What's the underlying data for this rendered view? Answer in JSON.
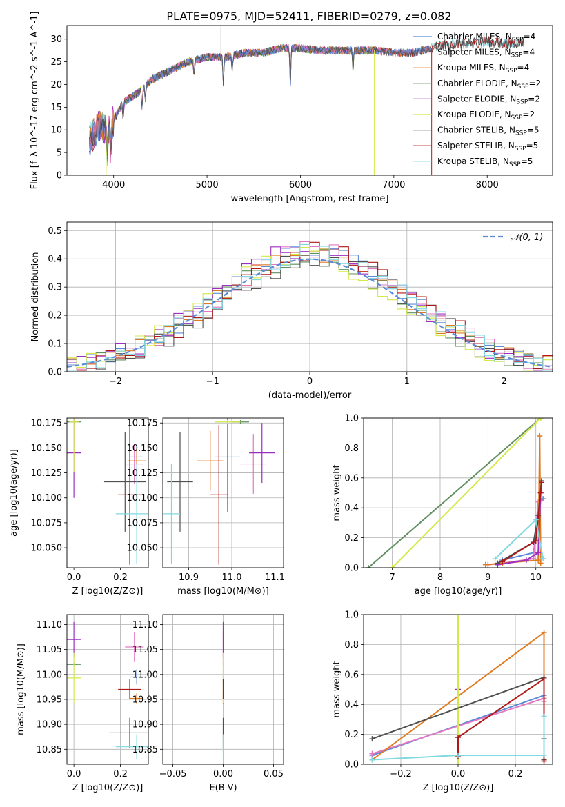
{
  "figure_title": "PLATE=0975, MJD=52411, FIBERID=0279, z=0.082",
  "colors": {
    "Chabrier MILES": "#5b8bd6",
    "Salpeter MILES": "#e377c2",
    "Kroupa MILES": "#e07a20",
    "Chabrier ELODIE": "#5f8f5f",
    "Salpeter ELODIE": "#9b30c0",
    "Kroupa ELODIE": "#d4e84a",
    "Chabrier STELIB": "#505050",
    "Salpeter STELIB": "#b01818",
    "Kroupa STELIB": "#7fd8e0"
  },
  "chart_data": [
    {
      "id": "spectrum",
      "type": "line",
      "title": "PLATE=0975, MJD=52411, FIBERID=0279, z=0.082",
      "xlabel": "wavelength [Angstrom, rest frame]",
      "ylabel": "Flux [f_λ 10^-17 erg cm^-2 s^-1 A^-1]",
      "xlim": [
        3500,
        8700
      ],
      "ylim": [
        0,
        33
      ],
      "xticks": [
        4000,
        5000,
        6000,
        7000,
        8000
      ],
      "yticks": [
        0,
        5,
        10,
        15,
        20,
        25,
        30
      ],
      "grid": false,
      "legend_position": "top-right",
      "legend": [
        {
          "name": "Chabrier MILES",
          "label": "Chabrier MILES, N",
          "sub": "SSP",
          "suffix": "=4"
        },
        {
          "name": "Salpeter MILES",
          "label": "Salpeter MILES, N",
          "sub": "SSP",
          "suffix": "=4"
        },
        {
          "name": "Kroupa MILES",
          "label": "Kroupa MILES, N",
          "sub": "SSP",
          "suffix": "=4"
        },
        {
          "name": "Chabrier ELODIE",
          "label": "Chabrier ELODIE, N",
          "sub": "SSP",
          "suffix": "=2"
        },
        {
          "name": "Salpeter ELODIE",
          "label": "Salpeter ELODIE, N",
          "sub": "SSP",
          "suffix": "=2"
        },
        {
          "name": "Kroupa ELODIE",
          "label": "Kroupa ELODIE, N",
          "sub": "SSP",
          "suffix": "=2"
        },
        {
          "name": "Chabrier STELIB",
          "label": "Chabrier STELIB, N",
          "sub": "SSP",
          "suffix": "=5"
        },
        {
          "name": "Salpeter STELIB",
          "label": "Salpeter STELIB, N",
          "sub": "SSP",
          "suffix": "=5"
        },
        {
          "name": "Kroupa STELIB",
          "label": "Kroupa STELIB, N",
          "sub": "SSP",
          "suffix": "=5"
        }
      ],
      "continuum_points": [
        [
          3750,
          8
        ],
        [
          3850,
          11
        ],
        [
          3950,
          10
        ],
        [
          4000,
          12
        ],
        [
          4100,
          16
        ],
        [
          4250,
          18
        ],
        [
          4400,
          21
        ],
        [
          4600,
          23
        ],
        [
          4800,
          25
        ],
        [
          5000,
          26
        ],
        [
          5200,
          26
        ],
        [
          5400,
          27
        ],
        [
          5600,
          27
        ],
        [
          5800,
          28
        ],
        [
          6000,
          28
        ],
        [
          6200,
          27.5
        ],
        [
          6500,
          27.5
        ],
        [
          6800,
          27.5
        ],
        [
          7000,
          27
        ],
        [
          7200,
          27
        ],
        [
          7400,
          28
        ],
        [
          7600,
          29
        ],
        [
          7800,
          29
        ],
        [
          8000,
          29.5
        ],
        [
          8200,
          29
        ],
        [
          8400,
          29.5
        ]
      ],
      "absorption_lines": [
        [
          3934,
          -6
        ],
        [
          3968,
          -5
        ],
        [
          4102,
          -3
        ],
        [
          4304,
          -4
        ],
        [
          4340,
          -3
        ],
        [
          4861,
          -3
        ],
        [
          5175,
          -6
        ],
        [
          5270,
          -3
        ],
        [
          5892,
          -8
        ],
        [
          6563,
          -4
        ],
        [
          7600,
          -2
        ]
      ],
      "spikes": [
        [
          5150,
          "Chabrier STELIB",
          33
        ],
        [
          3920,
          "Kroupa ELODIE",
          0
        ],
        [
          6790,
          "Kroupa ELODIE",
          0
        ],
        [
          7405,
          "Salpeter STELIB",
          0
        ]
      ],
      "spectrum_end": {
        "MILES": 7400,
        "ELODIE": 6790,
        "STELIB": 8400
      }
    },
    {
      "id": "residuals",
      "type": "histogram",
      "xlabel": "(data-model)/error",
      "ylabel": "Normed distribution",
      "xlim": [
        -2.5,
        2.5
      ],
      "ylim": [
        0,
        0.53
      ],
      "xticks": [
        -2,
        -1,
        0,
        1,
        2
      ],
      "yticks": [
        0.0,
        0.1,
        0.2,
        0.3,
        0.4,
        0.5
      ],
      "grid": true,
      "bin_width": 0.1,
      "legend_position": "top-right",
      "reference_curve": {
        "name": "N(0,1)",
        "label": "𝒩(0, 1)",
        "style": "dashed",
        "color": "#5b8bd6"
      },
      "histogram_series": [
        {
          "name": "Chabrier MILES",
          "amplitude": 0.42,
          "offset": 0.03
        },
        {
          "name": "Salpeter MILES",
          "amplitude": 0.43,
          "offset": 0.06
        },
        {
          "name": "Kroupa MILES",
          "amplitude": 0.41,
          "offset": 0.02
        },
        {
          "name": "Chabrier ELODIE",
          "amplitude": 0.4,
          "offset": -0.02
        },
        {
          "name": "Salpeter ELODIE",
          "amplitude": 0.44,
          "offset": 0.01
        },
        {
          "name": "Kroupa ELODIE",
          "amplitude": 0.41,
          "offset": -0.05
        },
        {
          "name": "Chabrier STELIB",
          "amplitude": 0.4,
          "offset": 0.08
        },
        {
          "name": "Salpeter STELIB",
          "amplitude": 0.43,
          "offset": 0.1
        },
        {
          "name": "Kroupa STELIB",
          "amplitude": 0.42,
          "offset": 0.04
        }
      ]
    },
    {
      "id": "age_vs_Z",
      "type": "errorbar",
      "xlabel": "Z [log10(Z/Z⊙)]",
      "ylabel": "age [log10(age/yr)]",
      "xlim": [
        -0.03,
        0.32
      ],
      "ylim": [
        10.03,
        10.18
      ],
      "xticks": [
        0.0,
        0.2
      ],
      "yticks": [
        10.05,
        10.075,
        10.1,
        10.125,
        10.15,
        10.175
      ],
      "grid": false,
      "points": [
        {
          "name": "Chabrier MILES",
          "x": 0.27,
          "y": 10.141,
          "xerr": 0.03,
          "yerr": 0.01
        },
        {
          "name": "Salpeter MILES",
          "x": 0.26,
          "y": 10.134,
          "xerr": 0.04,
          "yerr": 0.02
        },
        {
          "name": "Kroupa MILES",
          "x": 0.27,
          "y": 10.137,
          "xerr": 0.04,
          "yerr": 0.012
        },
        {
          "name": "Chabrier ELODIE",
          "x": 0.0,
          "y": 10.176,
          "xerr": 0.03,
          "yerr": 0.002
        },
        {
          "name": "Salpeter ELODIE",
          "x": 0.0,
          "y": 10.145,
          "xerr": 0.03,
          "yerr": 0.045
        },
        {
          "name": "Kroupa ELODIE",
          "x": 0.0,
          "y": 10.176,
          "xerr": 0.02,
          "yerr": 0.05
        },
        {
          "name": "Chabrier STELIB",
          "x": 0.22,
          "y": 10.116,
          "xerr": 0.09,
          "yerr": 0.05
        },
        {
          "name": "Salpeter STELIB",
          "x": 0.24,
          "y": 10.103,
          "xerr": 0.05,
          "yerr": 0.07
        },
        {
          "name": "Kroupa STELIB",
          "x": 0.27,
          "y": 10.084,
          "xerr": 0.09,
          "yerr": 0.05
        }
      ]
    },
    {
      "id": "age_vs_mass",
      "type": "errorbar",
      "xlabel": "mass [log10(M/M⊙)]",
      "ylabel": "",
      "xlim": [
        10.84,
        11.12
      ],
      "ylim": [
        10.03,
        10.18
      ],
      "xticks": [
        10.9,
        11.0,
        11.1
      ],
      "yticks": [
        10.05,
        10.075,
        10.1,
        10.125,
        10.15,
        10.175
      ],
      "grid": true,
      "points": [
        {
          "name": "Chabrier MILES",
          "x": 10.99,
          "y": 10.141,
          "xerr": 0.03,
          "yerr": 0.055
        },
        {
          "name": "Salpeter MILES",
          "x": 11.05,
          "y": 10.134,
          "xerr": 0.03,
          "yerr": 0.03
        },
        {
          "name": "Kroupa MILES",
          "x": 10.95,
          "y": 10.137,
          "xerr": 0.03,
          "yerr": 0.03
        },
        {
          "name": "Chabrier ELODIE",
          "x": 11.02,
          "y": 10.176,
          "xerr": 0.02,
          "yerr": 0.002
        },
        {
          "name": "Salpeter ELODIE",
          "x": 11.07,
          "y": 10.145,
          "xerr": 0.03,
          "yerr": 0.03
        },
        {
          "name": "Kroupa ELODIE",
          "x": 10.99,
          "y": 10.176,
          "xerr": 0.03,
          "yerr": 0.002
        },
        {
          "name": "Chabrier STELIB",
          "x": 10.88,
          "y": 10.116,
          "xerr": 0.03,
          "yerr": 0.05
        },
        {
          "name": "Salpeter STELIB",
          "x": 10.97,
          "y": 10.103,
          "xerr": 0.02,
          "yerr": 0.07
        },
        {
          "name": "Kroupa STELIB",
          "x": 10.86,
          "y": 10.084,
          "xerr": 0.02,
          "yerr": 0.05
        }
      ]
    },
    {
      "id": "massweight_vs_age",
      "type": "line",
      "xlabel": "age [log10(age/yr)]",
      "ylabel": "mass weight",
      "xlim": [
        6.4,
        10.35
      ],
      "ylim": [
        0,
        1
      ],
      "xticks": [
        7,
        8,
        9,
        10
      ],
      "yticks": [
        0.0,
        0.2,
        0.4,
        0.6,
        0.8,
        1.0
      ],
      "grid": true,
      "series": [
        {
          "name": "Chabrier MILES",
          "x": [
            9.2,
            9.3,
            9.95,
            10.1,
            10.15
          ],
          "y": [
            0.02,
            0.05,
            0.1,
            0.45,
            0.46
          ]
        },
        {
          "name": "Salpeter MILES",
          "x": [
            9.0,
            9.3,
            9.95,
            10.05,
            10.1
          ],
          "y": [
            0.02,
            0.03,
            0.06,
            0.44,
            0.45
          ]
        },
        {
          "name": "Kroupa MILES",
          "x": [
            8.95,
            9.3,
            10.05,
            10.08,
            10.1
          ],
          "y": [
            0.02,
            0.03,
            0.05,
            0.88,
            0.03
          ]
        },
        {
          "name": "Chabrier ELODIE",
          "x": [
            6.5,
            10.1
          ],
          "y": [
            0.0,
            1.0
          ]
        },
        {
          "name": "Salpeter ELODIE",
          "x": [
            9.2,
            9.8,
            10.05,
            10.1
          ],
          "y": [
            0.02,
            0.05,
            0.1,
            0.5
          ]
        },
        {
          "name": "Kroupa ELODIE",
          "x": [
            7.0,
            10.1
          ],
          "y": [
            0.0,
            1.0
          ]
        },
        {
          "name": "Chabrier STELIB",
          "x": [
            9.2,
            9.95,
            10.05,
            10.12
          ],
          "y": [
            0.03,
            0.17,
            0.35,
            0.58
          ]
        },
        {
          "name": "Salpeter STELIB",
          "x": [
            9.3,
            10.0,
            10.1,
            10.12
          ],
          "y": [
            0.04,
            0.18,
            0.5,
            0.57
          ]
        },
        {
          "name": "Kroupa STELIB",
          "x": [
            9.15,
            10.0,
            10.15
          ],
          "y": [
            0.06,
            0.32,
            0.06
          ]
        }
      ]
    },
    {
      "id": "mass_vs_Z",
      "type": "errorbar",
      "xlabel": "Z [log10(Z/Z⊙)]",
      "ylabel": "mass [log10(M/M⊙)]",
      "xlim": [
        -0.03,
        0.32
      ],
      "ylim": [
        10.82,
        11.12
      ],
      "xticks": [
        0.0,
        0.2
      ],
      "yticks": [
        10.85,
        10.9,
        10.95,
        11.0,
        11.05,
        11.1
      ],
      "grid": true,
      "points": [
        {
          "name": "Chabrier MILES",
          "x": 0.27,
          "y": 10.995,
          "xerr": 0.03,
          "yerr": 0.015
        },
        {
          "name": "Salpeter MILES",
          "x": 0.26,
          "y": 11.055,
          "xerr": 0.04,
          "yerr": 0.03
        },
        {
          "name": "Kroupa MILES",
          "x": 0.27,
          "y": 10.952,
          "xerr": 0.03,
          "yerr": 0.01
        },
        {
          "name": "Chabrier ELODIE",
          "x": 0.0,
          "y": 11.02,
          "xerr": 0.03,
          "yerr": 0.004
        },
        {
          "name": "Salpeter ELODIE",
          "x": 0.0,
          "y": 11.07,
          "xerr": 0.03,
          "yerr": 0.035
        },
        {
          "name": "Kroupa ELODIE",
          "x": 0.0,
          "y": 10.993,
          "xerr": 0.03,
          "yerr": 0.05
        },
        {
          "name": "Chabrier STELIB",
          "x": 0.24,
          "y": 10.883,
          "xerr": 0.09,
          "yerr": 0.03
        },
        {
          "name": "Salpeter STELIB",
          "x": 0.24,
          "y": 10.97,
          "xerr": 0.05,
          "yerr": 0.02
        },
        {
          "name": "Kroupa STELIB",
          "x": 0.27,
          "y": 10.855,
          "xerr": 0.09,
          "yerr": 0.025
        }
      ]
    },
    {
      "id": "mass_vs_EBV",
      "type": "errorbar",
      "xlabel": "E(B-V)",
      "ylabel": "",
      "xlim": [
        -0.06,
        0.06
      ],
      "ylim": [
        10.82,
        11.12
      ],
      "xticks": [
        -0.05,
        0.0,
        0.05
      ],
      "yticks": [
        10.85,
        10.9,
        10.95,
        11.0,
        11.05,
        11.1
      ],
      "grid": true,
      "points": [
        {
          "name": "Chabrier MILES",
          "x": 0.0,
          "y": 10.995,
          "xerr": 0.0,
          "yerr": 0.015
        },
        {
          "name": "Salpeter MILES",
          "x": 0.0,
          "y": 11.055,
          "xerr": 0.0,
          "yerr": 0.03
        },
        {
          "name": "Kroupa MILES",
          "x": 0.0,
          "y": 10.952,
          "xerr": 0.0,
          "yerr": 0.01
        },
        {
          "name": "Chabrier ELODIE",
          "x": 0.0,
          "y": 11.02,
          "xerr": 0.0,
          "yerr": 0.004
        },
        {
          "name": "Salpeter ELODIE",
          "x": 0.0,
          "y": 11.07,
          "xerr": 0.0,
          "yerr": 0.035
        },
        {
          "name": "Kroupa ELODIE",
          "x": 0.0,
          "y": 10.993,
          "xerr": 0.0,
          "yerr": 0.05
        },
        {
          "name": "Chabrier STELIB",
          "x": 0.0,
          "y": 10.883,
          "xerr": 0.0,
          "yerr": 0.03
        },
        {
          "name": "Salpeter STELIB",
          "x": 0.0,
          "y": 10.97,
          "xerr": 0.0,
          "yerr": 0.02
        },
        {
          "name": "Kroupa STELIB",
          "x": 0.0,
          "y": 10.855,
          "xerr": 0.0,
          "yerr": 0.025
        }
      ]
    },
    {
      "id": "massweight_vs_Z",
      "type": "line",
      "xlabel": "Z [log10(Z/Z⊙)]",
      "ylabel": "mass weight",
      "xlim": [
        -0.33,
        0.33
      ],
      "ylim": [
        0,
        1
      ],
      "xticks": [
        -0.2,
        0.0,
        0.2
      ],
      "yticks": [
        0.0,
        0.2,
        0.4,
        0.6,
        0.8,
        1.0
      ],
      "grid": true,
      "series": [
        {
          "name": "Chabrier MILES",
          "x": [
            -0.3,
            0.3,
            0.3
          ],
          "y": [
            0.06,
            0.46,
            0.44
          ]
        },
        {
          "name": "Salpeter MILES",
          "x": [
            -0.3,
            0.3,
            0.3
          ],
          "y": [
            0.07,
            0.44,
            0.42
          ]
        },
        {
          "name": "Kroupa MILES",
          "x": [
            -0.3,
            0.3,
            0.3
          ],
          "y": [
            0.03,
            0.88,
            0.03
          ]
        },
        {
          "name": "Chabrier ELODIE",
          "x": [
            0.0,
            0.0
          ],
          "y": [
            1.0,
            0.0
          ]
        },
        {
          "name": "Salpeter ELODIE",
          "x": [
            0.0,
            0.0
          ],
          "y": [
            0.5,
            0.0
          ]
        },
        {
          "name": "Kroupa ELODIE",
          "x": [
            0.0,
            0.0
          ],
          "y": [
            1.0,
            0.0
          ]
        },
        {
          "name": "Chabrier STELIB",
          "x": [
            -0.3,
            0.3,
            0.3,
            0.3
          ],
          "y": [
            0.17,
            0.58,
            0.17,
            0.03
          ]
        },
        {
          "name": "Salpeter STELIB",
          "x": [
            0.0,
            0.0,
            0.3,
            0.3
          ],
          "y": [
            0.05,
            0.18,
            0.57,
            0.02
          ]
        },
        {
          "name": "Kroupa STELIB",
          "x": [
            -0.3,
            0.0,
            0.3,
            0.3
          ],
          "y": [
            0.03,
            0.06,
            0.06,
            0.32
          ]
        }
      ]
    }
  ]
}
